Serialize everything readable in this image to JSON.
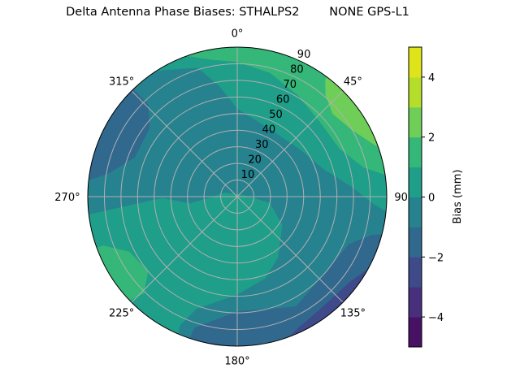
{
  "chart_data": {
    "type": "polar-contour",
    "title": "Delta Antenna Phase Biases: STHALPS2        NONE GPS-L1",
    "azimuth_ticks": [
      0,
      45,
      90,
      135,
      180,
      225,
      270,
      315
    ],
    "azimuth_tick_labels": [
      "0°",
      "45°",
      "90°",
      "135°",
      "180°",
      "225°",
      "270°",
      "315°"
    ],
    "azimuth_direction": "clockwise from top",
    "zenith_ticks": [
      10,
      20,
      30,
      40,
      50,
      60,
      70,
      80,
      90
    ],
    "zenith_tick_labels": [
      "10",
      "20",
      "30",
      "40",
      "50",
      "60",
      "70",
      "80",
      "90"
    ],
    "zenith_range": [
      0,
      90
    ],
    "grid": true,
    "colormap": "viridis",
    "levels": [
      -5,
      -4,
      -3,
      -2,
      -1,
      0,
      1,
      2,
      3,
      4,
      5
    ],
    "level_colors": [
      "#471164",
      "#472f7d",
      "#3e4a89",
      "#31688e",
      "#26828e",
      "#1f9e89",
      "#35b779",
      "#6ece58",
      "#b5de2b",
      "#dfe31a"
    ],
    "colorbar": {
      "label": "Bias (mm)",
      "range": [
        -5,
        5
      ],
      "ticks": [
        -4,
        -2,
        0,
        2,
        4
      ],
      "tick_labels": [
        "−4",
        "−2",
        "0",
        "2",
        "4"
      ],
      "placement": "right"
    },
    "background_level": [
      -1,
      0
    ],
    "regions": [
      {
        "level": [
          0,
          1
        ],
        "points": [
          [
            97,
            95
          ],
          [
            93,
            82
          ],
          [
            85,
            69
          ],
          [
            73,
            55
          ],
          [
            52,
            47
          ],
          [
            27,
            45
          ],
          [
            0,
            53
          ],
          [
            351,
            67
          ],
          [
            343,
            81
          ],
          [
            330,
            88
          ],
          [
            320,
            95
          ],
          [
            320,
            130
          ],
          [
            0,
            130
          ],
          [
            60,
            130
          ],
          [
            97,
            130
          ]
        ]
      },
      {
        "level": [
          0,
          1
        ],
        "points": [
          [
            263,
            92
          ],
          [
            266,
            61
          ],
          [
            269,
            45
          ],
          [
            262,
            29
          ],
          [
            268,
            16
          ],
          [
            288,
            8
          ],
          [
            76,
            4
          ],
          [
            101,
            20
          ],
          [
            122,
            32
          ],
          [
            146,
            44
          ],
          [
            161,
            52
          ],
          [
            180,
            59
          ],
          [
            200,
            72
          ],
          [
            204,
            85
          ],
          [
            202,
            98
          ],
          [
            202,
            130
          ],
          [
            230,
            130
          ],
          [
            263,
            130
          ]
        ]
      },
      {
        "level": [
          1,
          2
        ],
        "points": [
          [
            339,
            91
          ],
          [
            349,
            84
          ],
          [
            0,
            81
          ],
          [
            15,
            77
          ],
          [
            31,
            71
          ],
          [
            48,
            67
          ],
          [
            65,
            68
          ],
          [
            77,
            78
          ],
          [
            82,
            91
          ],
          [
            82,
            130
          ],
          [
            40,
            130
          ],
          [
            0,
            130
          ],
          [
            339,
            130
          ]
        ]
      },
      {
        "level": [
          2,
          3
        ],
        "points": [
          [
            37,
            88
          ],
          [
            41,
            81
          ],
          [
            49,
            76
          ],
          [
            60,
            80
          ],
          [
            70,
            89
          ],
          [
            70,
            130
          ],
          [
            37,
            130
          ]
        ]
      },
      {
        "level": [
          1,
          2
        ],
        "points": [
          [
            250,
            86
          ],
          [
            243,
            73
          ],
          [
            230,
            70
          ],
          [
            224,
            81
          ],
          [
            226,
            90
          ],
          [
            226,
            130
          ],
          [
            250,
            130
          ]
        ]
      },
      {
        "level": [
          -2,
          -1
        ],
        "points": [
          [
            316,
            90
          ],
          [
            316,
            77
          ],
          [
            308,
            67
          ],
          [
            291,
            66
          ],
          [
            280,
            79
          ],
          [
            276,
            91
          ],
          [
            276,
            130
          ],
          [
            316,
            130
          ]
        ]
      },
      {
        "level": [
          -2,
          -1
        ],
        "points": [
          [
            104,
            93
          ],
          [
            106,
            84
          ],
          [
            113,
            73
          ],
          [
            133,
            70
          ],
          [
            152,
            75
          ],
          [
            180,
            69
          ],
          [
            198,
            83
          ],
          [
            199,
            96
          ],
          [
            199,
            130
          ],
          [
            150,
            130
          ],
          [
            104,
            130
          ]
        ]
      },
      {
        "level": [
          -3,
          -2
        ],
        "points": [
          [
            119,
            90
          ],
          [
            127,
            85
          ],
          [
            142,
            84
          ],
          [
            157,
            88
          ],
          [
            162,
            92
          ],
          [
            162,
            130
          ],
          [
            119,
            130
          ]
        ]
      }
    ]
  }
}
